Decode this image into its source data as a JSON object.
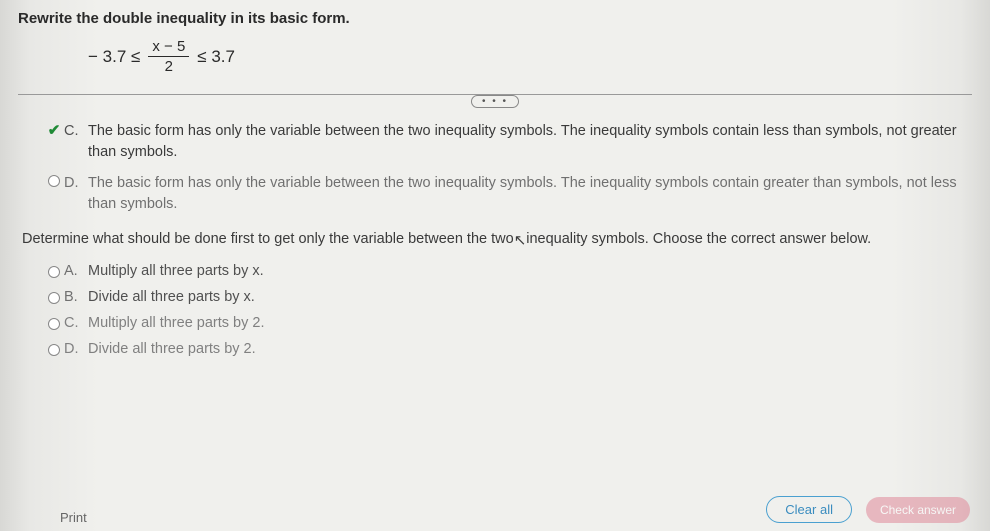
{
  "instruction": "Rewrite the double inequality in its basic form.",
  "equation": {
    "left": "− 3.7 ≤",
    "num": "x − 5",
    "den": "2",
    "right": "≤ 3.7"
  },
  "ellipsis": "• • •",
  "group1": {
    "C": {
      "letter": "C.",
      "text": "The basic form has only the variable between the two inequality symbols. The inequality symbols contain less than symbols, not greater than symbols.",
      "selected": true
    },
    "D": {
      "letter": "D.",
      "text": "The basic form has only the variable between the two inequality symbols. The inequality symbols contain greater than symbols, not less than symbols.",
      "selected": false
    }
  },
  "subprompt_pre": "Determine what should be done first to get only the variable between the two",
  "subprompt_post": "inequality symbols. Choose the correct answer below.",
  "group2": {
    "A": {
      "letter": "A.",
      "text": "Multiply all three parts by x."
    },
    "B": {
      "letter": "B.",
      "text": "Divide all three parts by x."
    },
    "C": {
      "letter": "C.",
      "text": "Multiply all three parts by 2."
    },
    "D": {
      "letter": "D.",
      "text": "Divide all three parts by 2."
    }
  },
  "buttons": {
    "clear": "Clear all",
    "check": "Check answer"
  },
  "print": "Print",
  "colors": {
    "check_green": "#1f8a36",
    "clear_border": "#4aa0d0",
    "check_bg": "#e08a9a"
  }
}
